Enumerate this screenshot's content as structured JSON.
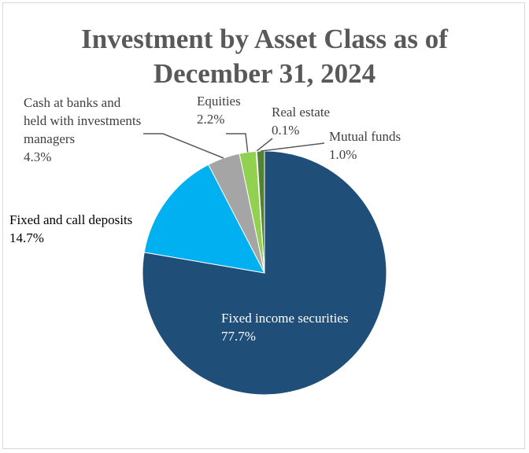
{
  "chart_data": {
    "type": "pie",
    "title": "Investment by Asset Class as of December 31, 2024",
    "categories": [
      "Fixed income securities",
      "Fixed and call deposits",
      "Cash at banks and held with investments managers",
      "Equities",
      "Real estate",
      "Mutual funds"
    ],
    "values": [
      77.7,
      14.7,
      4.3,
      2.2,
      0.1,
      1.0
    ],
    "value_labels": [
      "77.7%",
      "14.7%",
      "4.3%",
      "2.2%",
      "0.1%",
      "1.0%"
    ],
    "colors": [
      "#1f4e79",
      "#00b0f0",
      "#a5a5a5",
      "#92d050",
      "#a9d18e",
      "#548235"
    ]
  }
}
